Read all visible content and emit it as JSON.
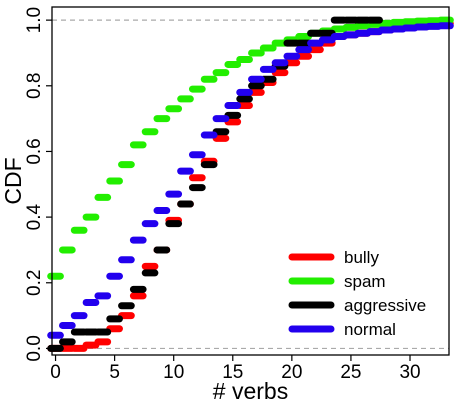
{
  "chart_data": {
    "type": "step",
    "title": "",
    "xlabel": "# verbs",
    "ylabel": "CDF",
    "xlim": [
      -0.3,
      33.3
    ],
    "ylim": [
      -0.02,
      1.04
    ],
    "x_ticks": [
      "0",
      "5",
      "10",
      "15",
      "20",
      "25",
      "30"
    ],
    "x_tick_values": [
      0,
      5,
      10,
      15,
      20,
      25,
      30
    ],
    "y_ticks": [
      "0.0",
      "0.2",
      "0.4",
      "0.6",
      "0.8",
      "1.0"
    ],
    "y_tick_values": [
      0,
      0.2,
      0.4,
      0.6,
      0.8,
      1.0
    ],
    "reference_lines": [
      0,
      1
    ],
    "legend_position": "bottom-right",
    "series": [
      {
        "name": "bully",
        "color": "#ff0000",
        "points": [
          [
            0,
            0
          ],
          [
            1,
            0
          ],
          [
            2,
            0
          ],
          [
            3,
            0.01
          ],
          [
            4,
            0.02
          ],
          [
            5,
            0.06
          ],
          [
            6,
            0.1
          ],
          [
            7,
            0.16
          ],
          [
            8,
            0.25
          ],
          [
            9,
            0.3
          ],
          [
            10,
            0.39
          ],
          [
            11,
            0.44
          ],
          [
            12,
            0.52
          ],
          [
            13,
            0.57
          ],
          [
            14,
            0.64
          ],
          [
            15,
            0.69
          ],
          [
            16,
            0.74
          ],
          [
            17,
            0.78
          ],
          [
            18,
            0.81
          ],
          [
            19,
            0.84
          ],
          [
            20,
            0.87
          ],
          [
            21,
            0.89
          ],
          [
            22,
            0.91
          ],
          [
            23,
            0.93
          ],
          [
            24,
            0.95
          ],
          [
            25,
            0.955
          ],
          [
            26,
            0.96
          ],
          [
            27,
            0.965
          ],
          [
            28,
            0.97
          ],
          [
            29,
            0.975
          ],
          [
            30,
            0.98
          ],
          [
            31,
            0.982
          ],
          [
            32,
            0.985
          ],
          [
            33,
            0.99
          ]
        ]
      },
      {
        "name": "spam",
        "color": "#22ee00",
        "points": [
          [
            0,
            0.22
          ],
          [
            1,
            0.3
          ],
          [
            2,
            0.36
          ],
          [
            3,
            0.4
          ],
          [
            4,
            0.46
          ],
          [
            5,
            0.51
          ],
          [
            6,
            0.56
          ],
          [
            7,
            0.62
          ],
          [
            8,
            0.66
          ],
          [
            9,
            0.7
          ],
          [
            10,
            0.73
          ],
          [
            11,
            0.76
          ],
          [
            12,
            0.79
          ],
          [
            13,
            0.82
          ],
          [
            14,
            0.84
          ],
          [
            15,
            0.865
          ],
          [
            16,
            0.88
          ],
          [
            17,
            0.9
          ],
          [
            18,
            0.915
          ],
          [
            19,
            0.93
          ],
          [
            20,
            0.94
          ],
          [
            21,
            0.95
          ],
          [
            22,
            0.96
          ],
          [
            23,
            0.967
          ],
          [
            24,
            0.973
          ],
          [
            25,
            0.978
          ],
          [
            26,
            0.983
          ],
          [
            27,
            0.987
          ],
          [
            28,
            0.99
          ],
          [
            29,
            0.993
          ],
          [
            30,
            0.995
          ],
          [
            31,
            0.997
          ],
          [
            32,
            0.998
          ],
          [
            33,
            1.0
          ]
        ]
      },
      {
        "name": "aggressive",
        "color": "#000000",
        "points": [
          [
            0,
            0
          ],
          [
            1,
            0.02
          ],
          [
            2,
            0.05
          ],
          [
            3,
            0.05
          ],
          [
            4,
            0.05
          ],
          [
            5,
            0.09
          ],
          [
            6,
            0.13
          ],
          [
            7,
            0.18
          ],
          [
            8,
            0.23
          ],
          [
            9,
            0.3
          ],
          [
            10,
            0.38
          ],
          [
            11,
            0.44
          ],
          [
            12,
            0.49
          ],
          [
            13,
            0.56
          ],
          [
            14,
            0.66
          ],
          [
            15,
            0.71
          ],
          [
            16,
            0.76
          ],
          [
            17,
            0.8
          ],
          [
            18,
            0.82
          ],
          [
            19,
            0.86
          ],
          [
            20,
            0.93
          ],
          [
            21,
            0.93
          ],
          [
            22,
            0.96
          ],
          [
            23,
            0.96
          ],
          [
            24,
            1.0
          ],
          [
            25,
            1.0
          ],
          [
            26,
            1.0
          ],
          [
            27,
            1.0
          ]
        ]
      },
      {
        "name": "normal",
        "color": "#2200ee",
        "points": [
          [
            0,
            0.04
          ],
          [
            1,
            0.07
          ],
          [
            2,
            0.1
          ],
          [
            3,
            0.14
          ],
          [
            4,
            0.16
          ],
          [
            5,
            0.22
          ],
          [
            6,
            0.27
          ],
          [
            7,
            0.33
          ],
          [
            8,
            0.38
          ],
          [
            9,
            0.42
          ],
          [
            10,
            0.47
          ],
          [
            11,
            0.54
          ],
          [
            12,
            0.59
          ],
          [
            13,
            0.65
          ],
          [
            14,
            0.7
          ],
          [
            15,
            0.74
          ],
          [
            16,
            0.78
          ],
          [
            17,
            0.82
          ],
          [
            18,
            0.85
          ],
          [
            19,
            0.87
          ],
          [
            20,
            0.89
          ],
          [
            21,
            0.91
          ],
          [
            22,
            0.93
          ],
          [
            23,
            0.94
          ],
          [
            24,
            0.95
          ],
          [
            25,
            0.955
          ],
          [
            26,
            0.96
          ],
          [
            27,
            0.965
          ],
          [
            28,
            0.97
          ],
          [
            29,
            0.973
          ],
          [
            30,
            0.976
          ],
          [
            31,
            0.979
          ],
          [
            32,
            0.981
          ],
          [
            33,
            0.983
          ]
        ]
      }
    ]
  }
}
